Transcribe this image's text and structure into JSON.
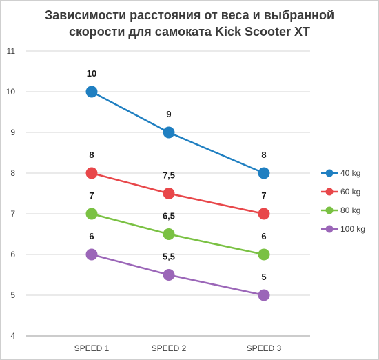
{
  "chart_data": {
    "type": "line",
    "title_line1": "Зависимости расстояния от веса и выбранной",
    "title_line2": "скорости для самоката Kick Scooter XT",
    "categories": [
      "SPEED 1",
      "SPEED 2",
      "SPEED 3"
    ],
    "ylim": [
      4,
      11
    ],
    "yticks": [
      "4",
      "5",
      "6",
      "7",
      "8",
      "9",
      "10",
      "11"
    ],
    "grid": true,
    "legend_position": "right",
    "series": [
      {
        "name": "40 kg",
        "color": "#1f7fc1",
        "values": [
          10,
          9,
          8
        ],
        "labels": [
          "10",
          "9",
          "8"
        ]
      },
      {
        "name": "60 kg",
        "color": "#e8474a",
        "values": [
          8,
          7.5,
          7
        ],
        "labels": [
          "8",
          "7,5",
          "7"
        ]
      },
      {
        "name": "80 kg",
        "color": "#7ac143",
        "values": [
          7,
          6.5,
          6
        ],
        "labels": [
          "7",
          "6,5",
          "6"
        ]
      },
      {
        "name": "100 kg",
        "color": "#9b66b8",
        "values": [
          6,
          5.5,
          5
        ],
        "labels": [
          "6",
          "5,5",
          "5"
        ]
      }
    ]
  }
}
